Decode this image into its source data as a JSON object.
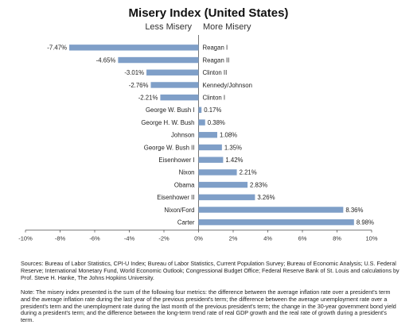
{
  "chart_data": {
    "type": "bar",
    "orientation": "horizontal",
    "title": "Misery Index (United States)",
    "direction_labels": {
      "left": "Less Misery",
      "right": "More Misery"
    },
    "categories": [
      "Reagan I",
      "Reagan II",
      "Clinton II",
      "Kennedy/Johnson",
      "Clinton I",
      "George W. Bush I",
      "George H. W. Bush",
      "Johnson",
      "George W. Bush II",
      "Eisenhower I",
      "Nixon",
      "Obama",
      "Eisenhower II",
      "Nixon/Ford",
      "Carter"
    ],
    "values": [
      -7.47,
      -4.65,
      -3.01,
      -2.76,
      -2.21,
      0.17,
      0.38,
      1.08,
      1.35,
      1.42,
      2.21,
      2.83,
      3.26,
      8.36,
      8.98
    ],
    "value_labels": [
      "-7.47%",
      "-4.65%",
      "-3.01%",
      "-2.76%",
      "-2.21%",
      "0.17%",
      "0.38%",
      "1.08%",
      "1.35%",
      "1.42%",
      "2.21%",
      "2.83%",
      "3.26%",
      "8.36%",
      "8.98%"
    ],
    "xlim": [
      -10,
      10
    ],
    "xticks": [
      -10,
      -8,
      -6,
      -4,
      -2,
      0,
      2,
      4,
      6,
      8,
      10
    ],
    "xtick_labels": [
      "-10%",
      "-8%",
      "-6%",
      "-4%",
      "-2%",
      "0%",
      "2%",
      "4%",
      "6%",
      "8%",
      "10%"
    ],
    "bar_color": "#7f9fc8",
    "grid": false,
    "legend": "none"
  },
  "sources": "Sources: Bureau of Labor Statistics, CPI-U Index; Bureau of Labor Statistics, Current Population Survey; Bureau of Economic Analysis; U.S. Federal Reserve; International Monetary Fund, World Economic Outlook; Congressional Budget Office; Federal Reserve Bank of St. Louis and calculations by Prof. Steve H. Hanke, The Johns Hopkins University.",
  "note": "Note: The misery index presented is the sum of the following four metrics: the difference between the average inflation rate over a president's term and the average inflation rate during the last year of the previous president's term; the difference between the average unemployment rate over a president's term and the unemployment rate during the last month of the previous president's term; the change in the 30-year government bond yield during a president's term; and the difference between the long-term trend rate of real GDP growth and the real rate of growth during a president's term."
}
